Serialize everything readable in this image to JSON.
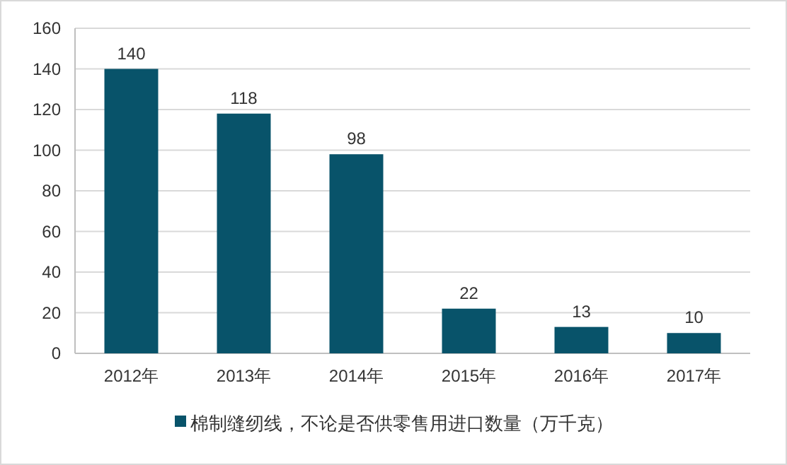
{
  "chart_data": {
    "type": "bar",
    "categories": [
      "2012年",
      "2013年",
      "2014年",
      "2015年",
      "2016年",
      "2017年"
    ],
    "series": [
      {
        "name": "棉制缝纫线，不论是否供零售用进口数量（万千克）",
        "color": "#08536a",
        "values": [
          140,
          118,
          98,
          22,
          13,
          10
        ]
      }
    ],
    "ylim": [
      0,
      160
    ],
    "yticks": [
      0,
      20,
      40,
      60,
      80,
      100,
      120,
      140,
      160
    ],
    "grid": "y",
    "legend": "bottom",
    "data_labels": true
  }
}
